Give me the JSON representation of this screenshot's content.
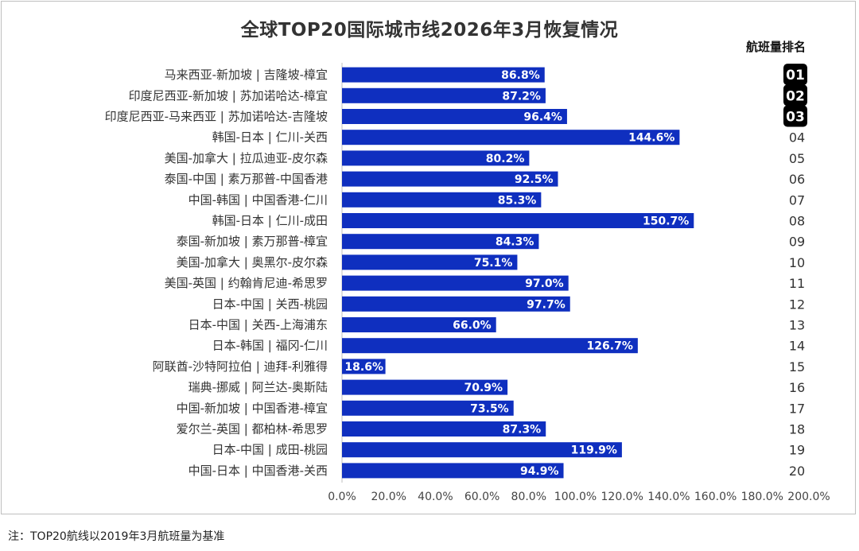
{
  "title": "全球TOP20国际城市线2026年3月恢复情况",
  "rank_header": "航班量排名",
  "note": "注：TOP20航线以2019年3月航班量为基准",
  "colors": {
    "bar": "#0f2fbf",
    "rank_badge": "#000000",
    "axis": "#bfbfbf"
  },
  "chart_data": {
    "type": "bar",
    "orientation": "horizontal",
    "categories": [
      "马来西亚-新加坡 | 吉隆坡-樟宜",
      "印度尼西亚-新加坡 | 苏加诺哈达-樟宜",
      "印度尼西亚-马来西亚 | 苏加诺哈达-吉隆坡",
      "韩国-日本 | 仁川-关西",
      "美国-加拿大 | 拉瓜迪亚-皮尔森",
      "泰国-中国 | 素万那普-中国香港",
      "中国-韩国 | 中国香港-仁川",
      "韩国-日本 | 仁川-成田",
      "泰国-新加坡 | 素万那普-樟宜",
      "美国-加拿大 | 奥黑尔-皮尔森",
      "美国-英国 | 约翰肯尼迪-希思罗",
      "日本-中国 | 关西-桃园",
      "日本-中国 | 关西-上海浦东",
      "日本-韩国 | 福冈-仁川",
      "阿联酋-沙特阿拉伯 | 迪拜-利雅得",
      "瑞典-挪威 | 阿兰达-奥斯陆",
      "中国-新加坡 | 中国香港-樟宜",
      "爱尔兰-英国 | 都柏林-希思罗",
      "日本-中国 | 成田-桃园",
      "中国-日本 | 中国香港-关西"
    ],
    "values": [
      86.8,
      87.2,
      96.4,
      144.6,
      80.2,
      92.5,
      85.3,
      150.7,
      84.3,
      75.1,
      97.0,
      97.7,
      66.0,
      126.7,
      18.6,
      70.9,
      73.5,
      87.3,
      119.9,
      94.9
    ],
    "value_labels": [
      "86.8%",
      "87.2%",
      "96.4%",
      "144.6%",
      "80.2%",
      "92.5%",
      "85.3%",
      "150.7%",
      "84.3%",
      "75.1%",
      "97.0%",
      "97.7%",
      "66.0%",
      "126.7%",
      "18.6%",
      "70.9%",
      "73.5%",
      "87.3%",
      "119.9%",
      "94.9%"
    ],
    "ranks": [
      "01",
      "02",
      "03",
      "04",
      "05",
      "06",
      "07",
      "08",
      "09",
      "10",
      "11",
      "12",
      "13",
      "14",
      "15",
      "16",
      "17",
      "18",
      "19",
      "20"
    ],
    "highlighted_ranks": 3,
    "xlim": [
      0,
      200
    ],
    "x_ticks": [
      0,
      20,
      40,
      60,
      80,
      100,
      120,
      140,
      160,
      180,
      200
    ],
    "x_tick_labels": [
      "0.0%",
      "20.0%",
      "40.0%",
      "60.0%",
      "80.0%",
      "100.0%",
      "120.0%",
      "140.0%",
      "160.0%",
      "180.0%",
      "200.0%"
    ],
    "grid": false
  }
}
